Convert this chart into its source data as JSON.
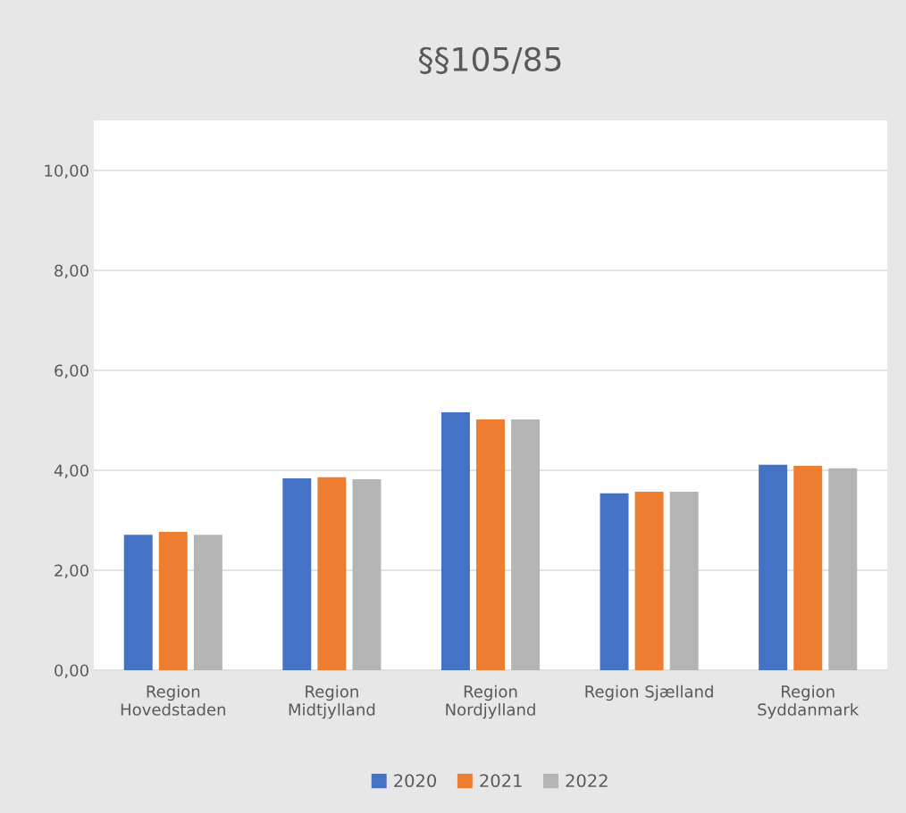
{
  "chart_data": {
    "type": "bar",
    "title": "§§105/85",
    "categories": [
      "Region Hovedstaden",
      "Region Midtjylland",
      "Region Nordjylland",
      "Region Sjælland",
      "Region Syddanmark"
    ],
    "series": [
      {
        "name": "2020",
        "color": "#4472c4",
        "values": [
          2.71,
          3.84,
          5.16,
          3.54,
          4.11
        ]
      },
      {
        "name": "2021",
        "color": "#ed7d31",
        "values": [
          2.77,
          3.86,
          5.02,
          3.57,
          4.09
        ]
      },
      {
        "name": "2022",
        "color": "#b4b4b4",
        "values": [
          2.71,
          3.82,
          5.02,
          3.57,
          4.04
        ]
      }
    ],
    "ylim": [
      0,
      11
    ],
    "yticks": [
      {
        "value": 0,
        "label": "0,00"
      },
      {
        "value": 2,
        "label": "2,00"
      },
      {
        "value": 4,
        "label": "4,00"
      },
      {
        "value": 6,
        "label": "6,00"
      },
      {
        "value": 8,
        "label": "8,00"
      },
      {
        "value": 10,
        "label": "10,00"
      }
    ],
    "grid": "y",
    "legend": "bottom"
  }
}
